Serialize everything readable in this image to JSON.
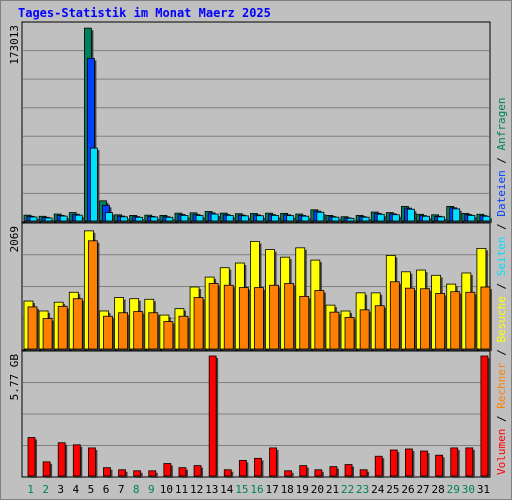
{
  "title": "Tages-Statistik im Monat Maerz 2025",
  "colors": {
    "background": "#c0c0c0",
    "title": "#0000ff",
    "hits": "#00805c",
    "files": "#0040ff",
    "pages": "#00e0ff",
    "visits": "#ffff00",
    "sites": "#ff8000",
    "kbytes": "#ff0000",
    "weekday_label": "#008040",
    "weekend_label": "#00805c",
    "grid": "#808080"
  },
  "legend": {
    "hits": "Anfragen",
    "files": "Dateien",
    "pages": "Seiten",
    "visits": "Besuche",
    "sites": "Rechner",
    "kbytes": "Volumen",
    "separator": "/"
  },
  "chart_data": {
    "type": "bar",
    "title": "Tages-Statistik im Monat Maerz 2025",
    "days": [
      "1",
      "2",
      "3",
      "4",
      "5",
      "6",
      "7",
      "8",
      "9",
      "10",
      "11",
      "12",
      "13",
      "14",
      "15",
      "16",
      "17",
      "18",
      "19",
      "20",
      "21",
      "22",
      "23",
      "24",
      "25",
      "26",
      "27",
      "28",
      "29",
      "30",
      "31"
    ],
    "weekend_days": [
      "1",
      "2",
      "8",
      "9",
      "15",
      "16",
      "22",
      "23",
      "29",
      "30"
    ],
    "panels": [
      {
        "name": "requests",
        "ymax_label": "173013",
        "ymax": 173013,
        "series": [
          {
            "name": "Anfragen",
            "key": "hits",
            "values": [
              5200,
              4200,
              6200,
              7500,
              172000,
              18000,
              5500,
              5000,
              5200,
              5000,
              7000,
              7300,
              8500,
              7000,
              6500,
              6700,
              7000,
              6800,
              6200,
              10000,
              5000,
              3800,
              5000,
              8000,
              7500,
              13000,
              6000,
              5500,
              13000,
              6800,
              6000
            ]
          },
          {
            "name": "Dateien",
            "key": "files",
            "values": [
              4200,
              3300,
              5000,
              6000,
              145000,
              14000,
              4400,
              3900,
              4100,
              3800,
              5800,
              5700,
              7200,
              5600,
              5200,
              5400,
              5700,
              5500,
              4900,
              8800,
              3900,
              2800,
              3900,
              6800,
              6400,
              11500,
              4800,
              4200,
              11800,
              5700,
              4800
            ]
          },
          {
            "name": "Seiten",
            "key": "pages",
            "values": [
              3600,
              2700,
              4400,
              5200,
              65000,
              7500,
              3700,
              3300,
              3600,
              3300,
              5000,
              4900,
              6200,
              5000,
              4600,
              4700,
              5000,
              4800,
              4300,
              7800,
              3400,
              2400,
              3400,
              6000,
              5600,
              10500,
              4200,
              3700,
              10800,
              5000,
              4200
            ]
          }
        ]
      },
      {
        "name": "visits",
        "ymax_label": "2069",
        "ymax": 2069,
        "series": [
          {
            "name": "Besuche",
            "key": "visits",
            "values": [
              820,
              650,
              800,
              970,
              2020,
              650,
              880,
              860,
              850,
              580,
              690,
              1060,
              1230,
              1390,
              1470,
              1840,
              1700,
              1570,
              1730,
              1520,
              750,
              650,
              960,
              960,
              1600,
              1320,
              1350,
              1260,
              1110,
              1300,
              1720
            ]
          },
          {
            "name": "Rechner",
            "key": "sites",
            "values": [
              720,
              520,
              730,
              860,
              1850,
              560,
              620,
              640,
              620,
              470,
              560,
              880,
              1120,
              1090,
              1050,
              1050,
              1090,
              1120,
              900,
              1000,
              630,
              540,
              670,
              740,
              1150,
              1040,
              1030,
              950,
              980,
              970,
              1060
            ]
          }
        ]
      },
      {
        "name": "volume",
        "ymax_label": "5.77 GB",
        "ymax": 5.77,
        "unit": "GB",
        "series": [
          {
            "name": "Volumen",
            "key": "kbytes",
            "values": [
              1.85,
              0.68,
              1.6,
              1.5,
              1.35,
              0.4,
              0.3,
              0.25,
              0.25,
              0.6,
              0.4,
              0.5,
              5.77,
              0.3,
              0.75,
              0.85,
              1.35,
              0.25,
              0.5,
              0.3,
              0.45,
              0.55,
              0.3,
              0.95,
              1.25,
              1.3,
              1.2,
              1.0,
              1.35,
              1.35,
              5.77
            ]
          }
        ]
      }
    ]
  }
}
